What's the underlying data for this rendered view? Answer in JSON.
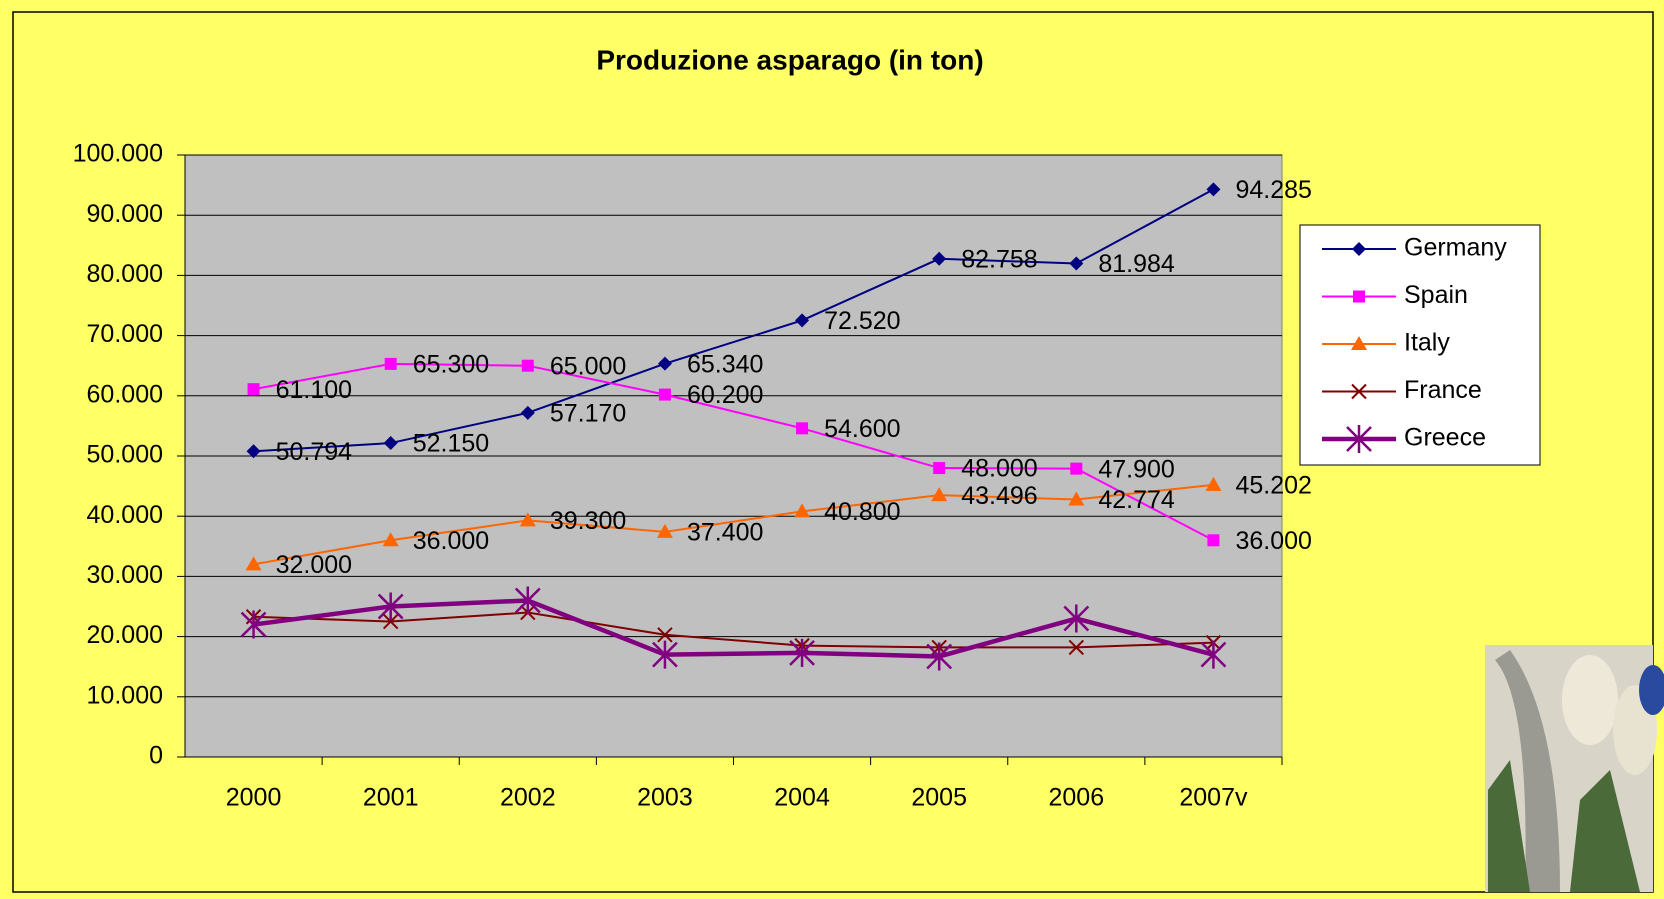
{
  "chart_data": {
    "type": "line",
    "title": "Produzione asparago (in ton)",
    "categories": [
      "2000",
      "2001",
      "2002",
      "2003",
      "2004",
      "2005",
      "2006",
      "2007v"
    ],
    "ylim": [
      0,
      100000
    ],
    "yticks": [
      0,
      {
        "value": 10000,
        "label": "10.000"
      },
      {
        "value": 20000,
        "label": "20.000"
      },
      {
        "value": 30000,
        "label": "30.000"
      },
      {
        "value": 40000,
        "label": "40.000"
      },
      {
        "value": 50000,
        "label": "50.000"
      },
      {
        "value": 60000,
        "label": "60.000"
      },
      {
        "value": 70000,
        "label": "70.000"
      },
      {
        "value": 80000,
        "label": "80.000"
      },
      {
        "value": 90000,
        "label": "90.000"
      },
      {
        "value": 100000,
        "label": "100.000"
      }
    ],
    "grid": true,
    "legend": "right",
    "series": [
      {
        "name": "Germany",
        "color": "#000080",
        "marker": "diamond",
        "values": [
          50794,
          52150,
          57170,
          65340,
          72520,
          82758,
          81984,
          94285
        ],
        "value_labels": [
          "50.794",
          "52.150",
          "57.170",
          "65.340",
          "72.520",
          "82.758",
          "81.984",
          "94.285"
        ]
      },
      {
        "name": "Spain",
        "color": "#ff00ff",
        "marker": "square",
        "values": [
          61100,
          65300,
          65000,
          60200,
          54600,
          48000,
          47900,
          36000
        ],
        "value_labels": [
          "61.100",
          "65.300",
          "65.000",
          "60.200",
          "54.600",
          "48.000",
          "47.900",
          "36.000"
        ]
      },
      {
        "name": "Italy",
        "color": "#ff6600",
        "marker": "triangle",
        "values": [
          32000,
          36000,
          39300,
          37400,
          40800,
          43496,
          42774,
          45202
        ],
        "value_labels": [
          "32.000",
          "36.000",
          "39.300",
          "37.400",
          "40.800",
          "43.496",
          "42.774",
          "45.202"
        ]
      },
      {
        "name": "France",
        "color": "#800000",
        "marker": "x",
        "values": [
          23300,
          22500,
          24000,
          20300,
          18500,
          18200,
          18200,
          19000
        ]
      },
      {
        "name": "Greece",
        "color": "#800080",
        "marker": "asterisk",
        "values": [
          22000,
          25000,
          26000,
          17000,
          17300,
          16700,
          23000,
          17000
        ]
      }
    ]
  }
}
